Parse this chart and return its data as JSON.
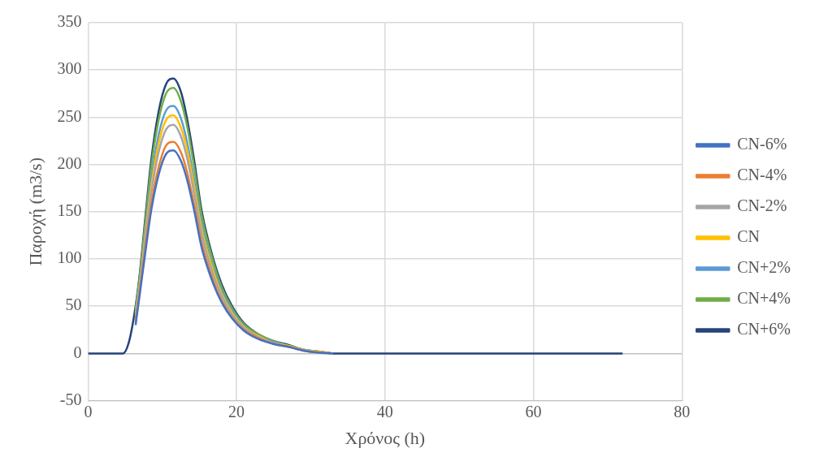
{
  "chart_data": {
    "type": "line",
    "xlabel": "Χρόνος (h)",
    "ylabel": "Παροχή (m3/s)",
    "x": [
      0,
      4.7,
      5.5,
      6.4,
      7,
      7.8,
      8.5,
      9.5,
      10.5,
      11.5,
      12.5,
      13.3,
      14.3,
      15.3,
      16.9,
      18,
      19.4,
      21,
      23,
      25,
      27,
      29,
      31,
      33,
      36,
      50,
      72
    ],
    "series": [
      {
        "name": "CN-6%",
        "color": "#4472c4",
        "values": [
          null,
          null,
          null,
          30,
          65,
          112,
          151,
          189,
          211,
          215,
          204,
          185,
          151,
          112,
          73,
          54,
          37,
          24,
          15,
          10,
          7,
          3,
          1,
          0,
          null,
          null,
          null
        ]
      },
      {
        "name": "CN-4%",
        "color": "#ed7d31",
        "values": [
          null,
          null,
          null,
          33,
          67,
          117,
          157,
          197,
          220,
          224,
          213,
          193,
          157,
          117,
          76,
          56,
          38,
          25,
          16,
          10,
          7,
          3,
          1,
          0,
          null,
          null,
          null
        ]
      },
      {
        "name": "CN-2%",
        "color": "#a5a5a5",
        "values": [
          null,
          null,
          null,
          37,
          73,
          126,
          169,
          213,
          237,
          242,
          230,
          208,
          169,
          126,
          82,
          61,
          41,
          27,
          17,
          11,
          7,
          4,
          1,
          0,
          null,
          null,
          null
        ]
      },
      {
        "name": "CN",
        "color": "#ffc000",
        "values": [
          null,
          null,
          null,
          40,
          76,
          131,
          176,
          222,
          247,
          252,
          239,
          217,
          176,
          131,
          86,
          63,
          43,
          28,
          18,
          11,
          8,
          4,
          2,
          0,
          null,
          null,
          null
        ]
      },
      {
        "name": "CN+2%",
        "color": "#5b9bd5",
        "values": [
          null,
          null,
          null,
          43,
          79,
          136,
          183,
          231,
          257,
          262,
          249,
          225,
          183,
          136,
          89,
          66,
          45,
          29,
          18,
          12,
          8,
          4,
          2,
          0,
          null,
          null,
          null
        ]
      },
      {
        "name": "CN+4%",
        "color": "#70ad47",
        "values": [
          null,
          null,
          null,
          47,
          84,
          146,
          197,
          247,
          275,
          281,
          267,
          242,
          197,
          146,
          96,
          70,
          48,
          31,
          20,
          13,
          8,
          4,
          2,
          0,
          null,
          null,
          null
        ]
      },
      {
        "name": "CN+6%",
        "color": "#264478",
        "values": [
          0,
          0,
          12,
          50,
          87,
          151,
          204,
          256,
          285,
          291,
          277,
          250,
          204,
          151,
          99,
          73,
          50,
          32,
          20,
          13,
          9,
          4,
          2,
          0,
          0,
          0,
          0
        ]
      }
    ],
    "xlim": [
      0,
      80
    ],
    "xticks": [
      0,
      20,
      40,
      60,
      80
    ],
    "ylim": [
      -50,
      350
    ],
    "yticks": [
      -50,
      0,
      50,
      100,
      150,
      200,
      250,
      300,
      350
    ],
    "grid": true,
    "legend": "right",
    "marker": "none",
    "line_style": "solid"
  }
}
